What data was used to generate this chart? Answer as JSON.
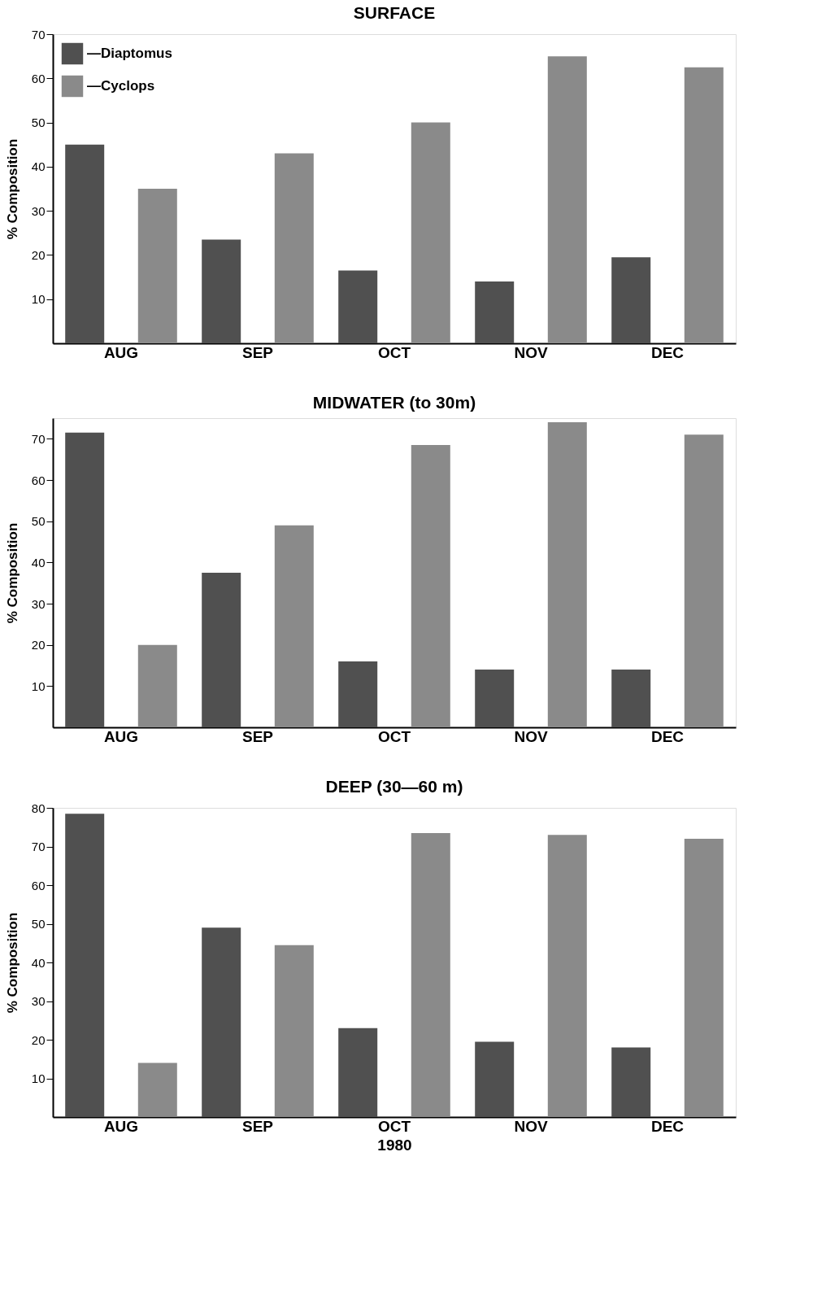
{
  "chart_data": [
    {
      "type": "bar",
      "title": "SURFACE",
      "ylabel": "% Composition",
      "categories": [
        "AUG",
        "SEP",
        "OCT",
        "NOV",
        "DEC"
      ],
      "ylim": [
        0,
        70
      ],
      "yticks": [
        10,
        20,
        30,
        40,
        50,
        60,
        70
      ],
      "legend": "top left",
      "grid": false,
      "series": [
        {
          "name": "—Diaptomus",
          "color": "#505050",
          "values": [
            45,
            23.5,
            16.5,
            14,
            19.5
          ]
        },
        {
          "name": "—Cyclops",
          "color": "#8a8a8a",
          "values": [
            35,
            43,
            50,
            65,
            62.5
          ]
        }
      ]
    },
    {
      "type": "bar",
      "title": "MIDWATER  (to 30m)",
      "ylabel": "% Composition",
      "categories": [
        "AUG",
        "SEP",
        "OCT",
        "NOV",
        "DEC"
      ],
      "ylim": [
        0,
        75
      ],
      "yticks": [
        10,
        20,
        30,
        40,
        50,
        60,
        70
      ],
      "grid": false,
      "series": [
        {
          "color": "#505050",
          "values": [
            71.5,
            37.5,
            16,
            14,
            14
          ]
        },
        {
          "color": "#8a8a8a",
          "values": [
            20,
            49,
            68.5,
            74,
            71
          ]
        }
      ]
    },
    {
      "type": "bar",
      "title": "DEEP (30—60 m)",
      "ylabel": "% Composition",
      "xlabel": "1980",
      "categories": [
        "AUG",
        "SEP",
        "OCT",
        "NOV",
        "DEC"
      ],
      "ylim": [
        0,
        80
      ],
      "yticks": [
        10,
        20,
        30,
        40,
        50,
        60,
        70,
        80
      ],
      "grid": false,
      "series": [
        {
          "color": "#505050",
          "values": [
            78.5,
            49,
            23,
            19.5,
            18
          ]
        },
        {
          "color": "#8a8a8a",
          "values": [
            14,
            44.5,
            73.5,
            73,
            72
          ]
        }
      ]
    }
  ]
}
